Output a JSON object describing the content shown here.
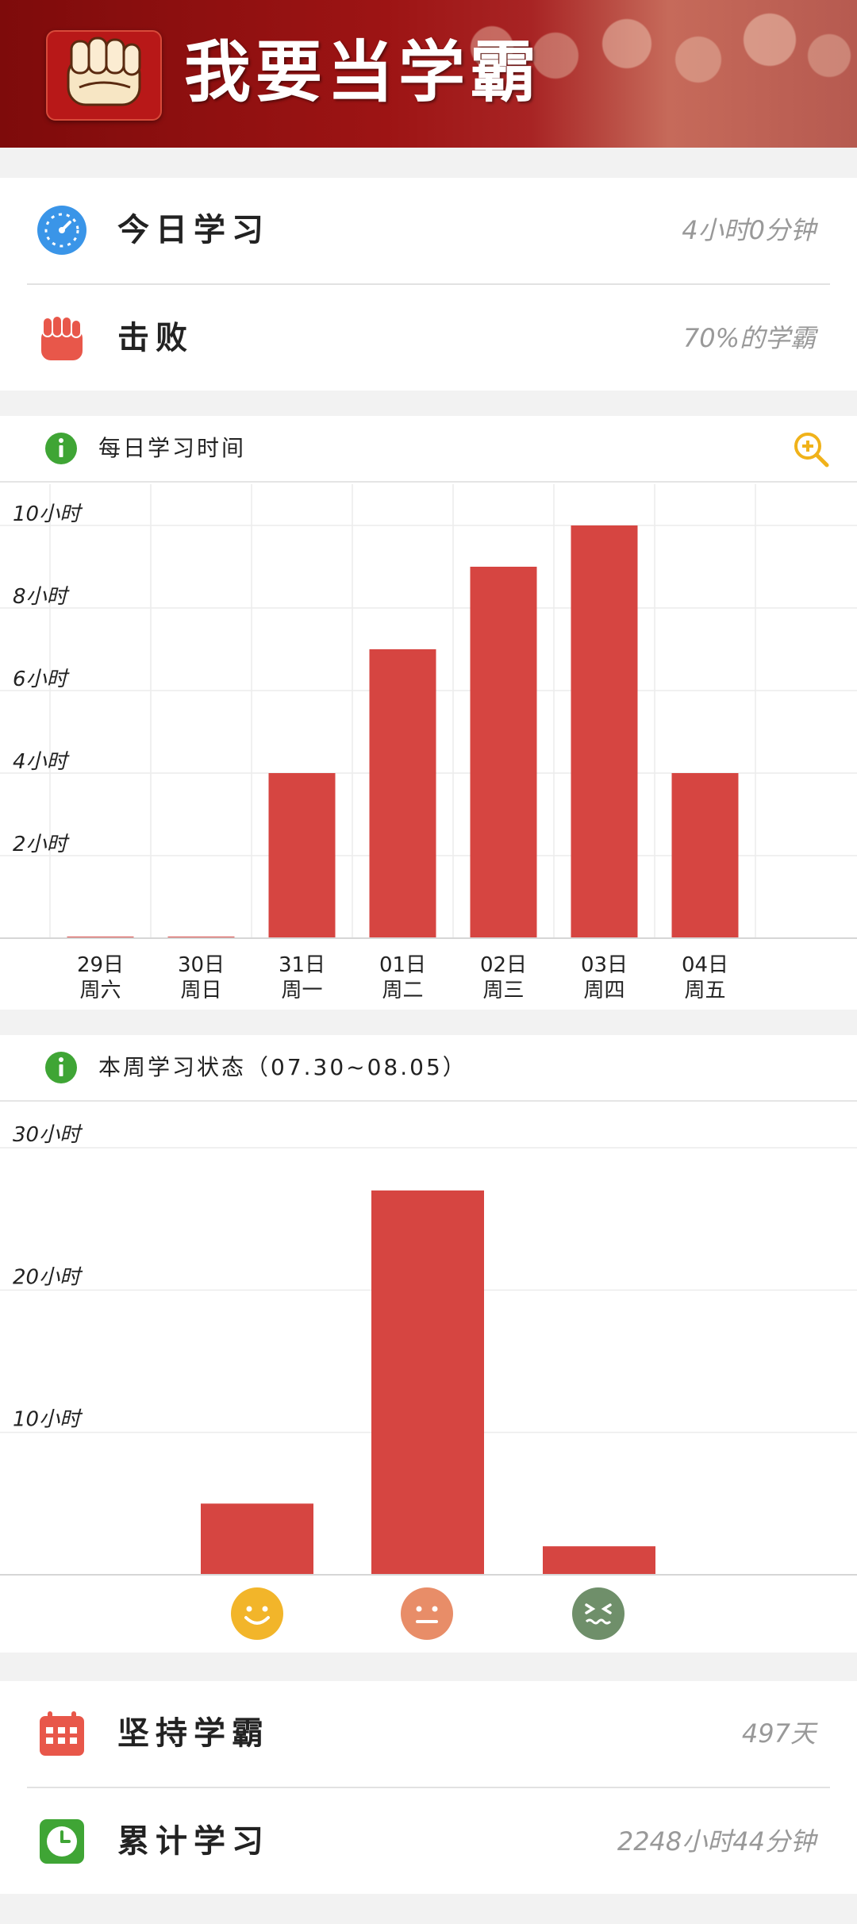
{
  "header": {
    "title": "我要当学霸"
  },
  "today": {
    "label": "今日学习",
    "value": "4小时0分钟",
    "icon": "clock-icon"
  },
  "beat": {
    "label": "击败",
    "value": "70%的学霸",
    "icon": "fist-icon"
  },
  "daily": {
    "title": "每日学习时间",
    "zoom_icon": "zoom-in-icon",
    "chart_data": {
      "type": "bar",
      "categories": [
        "29日 周六",
        "30日 周日",
        "31日 周一",
        "01日 周二",
        "02日 周三",
        "03日 周四",
        "04日 周五"
      ],
      "days": [
        "29日",
        "30日",
        "31日",
        "01日",
        "02日",
        "03日",
        "04日"
      ],
      "weekdays": [
        "周六",
        "周日",
        "周一",
        "周二",
        "周三",
        "周四",
        "周五"
      ],
      "values": [
        0,
        0,
        4,
        7,
        9,
        10,
        4
      ],
      "ylim": [
        0,
        10
      ],
      "y_ticks": [
        2,
        4,
        6,
        8,
        10
      ],
      "y_tick_labels": [
        "2小时",
        "4小时",
        "6小时",
        "8小时",
        "10小时"
      ],
      "color": "#d64541",
      "grid": true
    }
  },
  "weekly": {
    "title": "本周学习状态（07.30~08.05）",
    "chart_data": {
      "type": "bar",
      "categories": [
        "happy",
        "neutral",
        "sad"
      ],
      "values": [
        5,
        27,
        2
      ],
      "ylim": [
        0,
        30
      ],
      "y_ticks": [
        10,
        20,
        30
      ],
      "y_tick_labels": [
        "10小时",
        "20小时",
        "30小时"
      ],
      "color": "#d64541",
      "grid": true
    },
    "faces": [
      {
        "name": "happy-face-icon",
        "color": "#f2b52a"
      },
      {
        "name": "neutral-face-icon",
        "color": "#e88d68"
      },
      {
        "name": "sad-face-icon",
        "color": "#6f8f6a"
      }
    ]
  },
  "persist": {
    "label": "坚持学霸",
    "value": "497天",
    "icon": "calendar-icon"
  },
  "total": {
    "label": "累计学习",
    "value": "2248小时44分钟",
    "icon": "clock-icon"
  }
}
